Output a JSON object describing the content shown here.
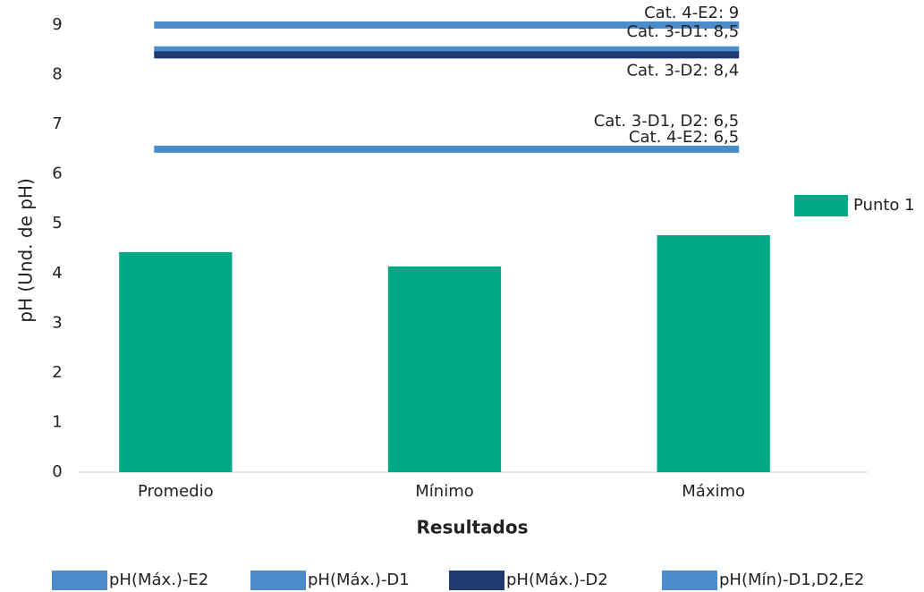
{
  "chart_data": {
    "type": "bar",
    "categories": [
      "Promedio",
      "Mínimo",
      "Máximo"
    ],
    "series": [
      {
        "name": "Punto 1",
        "color": "#00a884",
        "values": [
          4.43,
          4.14,
          4.77
        ]
      }
    ],
    "reference_lines": [
      {
        "name": "pH(Máx.)-E2",
        "color": "#4a8ccc",
        "value": 9,
        "labels": [
          "Cat. 4-E2: 9"
        ]
      },
      {
        "name": "pH(Máx.)-D1",
        "color": "#4a8ccc",
        "value": 8.5,
        "labels": [
          "Cat. 3-D1: 8,5"
        ]
      },
      {
        "name": "pH(Máx.)-D2",
        "color": "#1f3a6e",
        "value": 8.4,
        "labels": [
          "Cat. 3-D2: 8,4"
        ]
      },
      {
        "name": "pH(Mín)-D1,D2,E2",
        "color": "#4a8ccc",
        "value": 6.5,
        "labels": [
          "Cat. 3-D1, D2: 6,5",
          "Cat. 4-E2: 6,5"
        ]
      }
    ],
    "xlabel": "Resultados",
    "ylabel": "pH (Und. de pH)",
    "ylim": [
      0,
      9
    ],
    "yticks": [
      0,
      1,
      2,
      3,
      4,
      5,
      6,
      7,
      8,
      9
    ]
  }
}
